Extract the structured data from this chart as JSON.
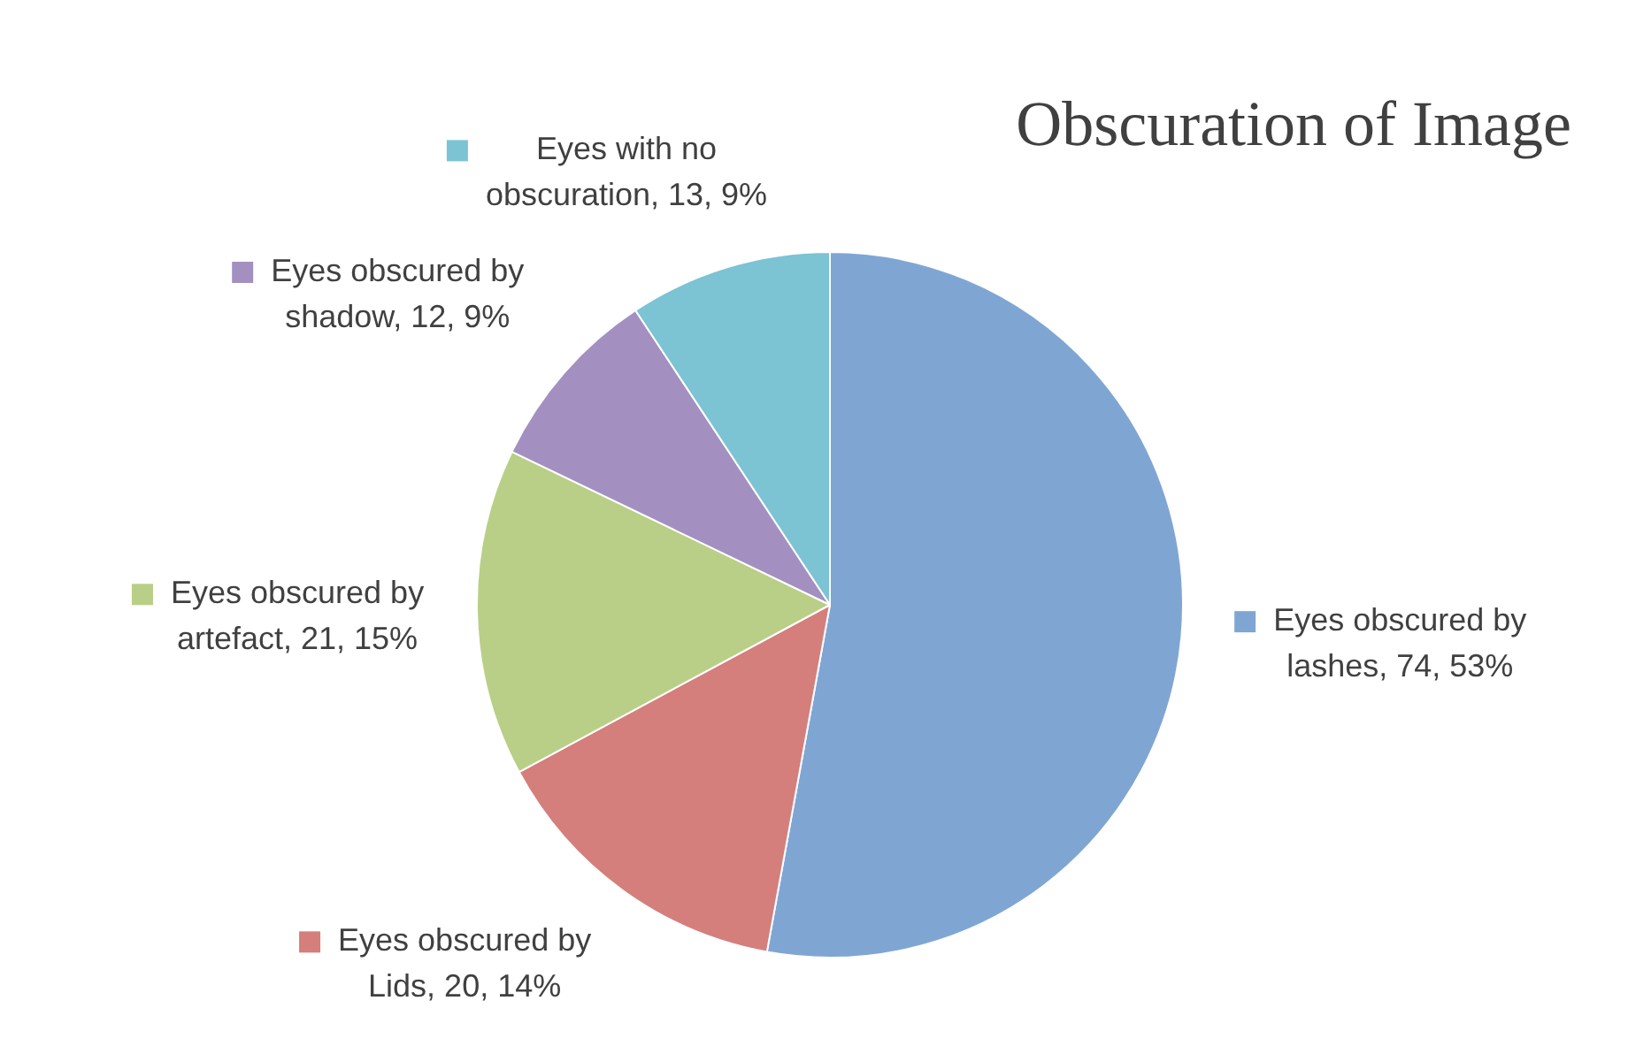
{
  "chart_data": {
    "type": "pie",
    "title": "Obscuration of Image",
    "categories": [
      "Eyes obscured by lashes",
      "Eyes obscured by Lids",
      "Eyes obscured by artefact",
      "Eyes obscured by shadow",
      "Eyes with no obscuration"
    ],
    "values": [
      74,
      20,
      21,
      12,
      13
    ],
    "value_labels": [
      "74, 53%",
      "20, 14%",
      "21, 15%",
      "12, 9%",
      "13, 9%"
    ],
    "colors": [
      "#7fa6d3",
      "#d47f7c",
      "#b9cf87",
      "#a390c0",
      "#7cc3d4"
    ],
    "legend": "left"
  }
}
